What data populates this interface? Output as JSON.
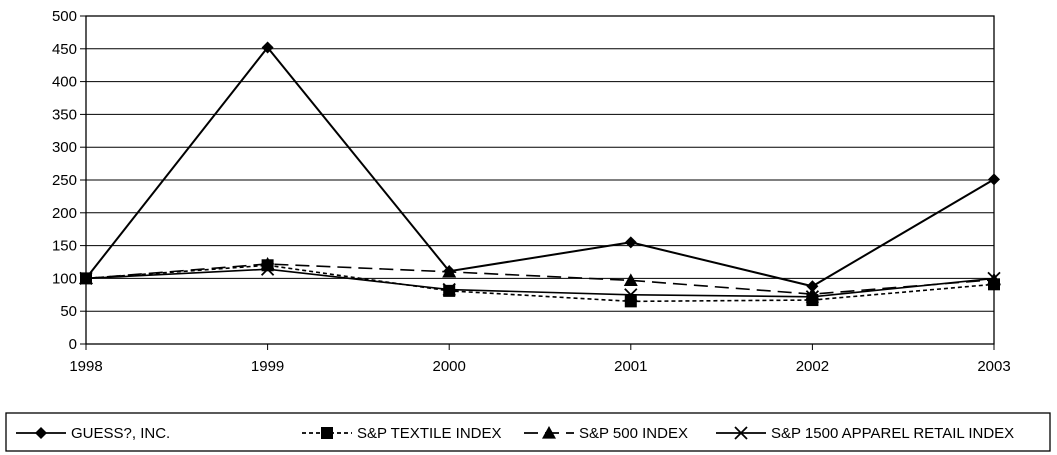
{
  "chart_data": {
    "type": "line",
    "categories": [
      "1998",
      "1999",
      "2000",
      "2001",
      "2002",
      "2003"
    ],
    "ylim": [
      0,
      500
    ],
    "yticks": [
      0,
      50,
      100,
      150,
      200,
      250,
      300,
      350,
      400,
      450,
      500
    ],
    "grid": true,
    "legend_position": "bottom",
    "series": [
      {
        "name": "GUESS?, INC.",
        "marker": "diamond",
        "dash": "solid",
        "values": [
          100,
          452,
          111,
          155,
          88,
          251
        ]
      },
      {
        "name": "S&P TEXTILE INDEX",
        "marker": "square",
        "dash": "dotted",
        "values": [
          100,
          120,
          81,
          65,
          67,
          91
        ]
      },
      {
        "name": "S&P 500 INDEX",
        "marker": "triangle",
        "dash": "dashed",
        "values": [
          100,
          122,
          110,
          97,
          76,
          98
        ]
      },
      {
        "name": "S&P 1500 APPAREL RETAIL INDEX",
        "marker": "x",
        "dash": "solid",
        "values": [
          100,
          114,
          83,
          75,
          72,
          100
        ]
      }
    ]
  }
}
